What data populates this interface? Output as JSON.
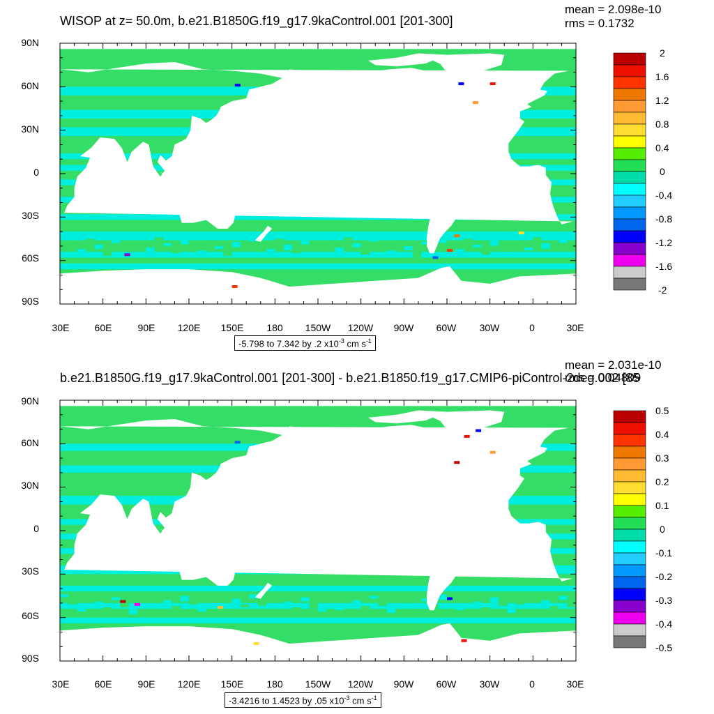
{
  "panels": [
    {
      "title": "WISOP at z=  50.0m, b.e21.B1850G.f19_g17.9kaControl.001 [201-300]",
      "mean_text": "mean = 2.098e-10",
      "rms_text": "rms = 0.1732",
      "range_main": "-5.798 to 7.342 by .2 x10",
      "range_exp": "-3",
      "range_units": " cm s",
      "range_units_exp": "-1",
      "colorbar_labels": [
        "2",
        "1.6",
        "1.2",
        "0.8",
        "0.4",
        "0",
        "-0.4",
        "-0.8",
        "-1.2",
        "-1.6",
        "-2"
      ]
    },
    {
      "title": "b.e21.B1850G.f19_g17.9kaControl.001 [201-300] - b.e21.B1850.f19_g17.CMIP6-piControl-2deg.002 [85",
      "mean_text": "mean = 2.031e-10",
      "rms_text": "rms = 0.04809",
      "range_main": "-3.4216 to 1.4523 by .05 x10",
      "range_exp": "-3",
      "range_units": " cm s",
      "range_units_exp": "-1",
      "colorbar_labels": [
        "0.5",
        "0.4",
        "0.3",
        "0.2",
        "0.1",
        "0",
        "-0.1",
        "-0.2",
        "-0.3",
        "-0.4",
        "-0.5"
      ]
    }
  ],
  "lat_labels": [
    "90N",
    "60N",
    "30N",
    "0",
    "30S",
    "60S",
    "90S"
  ],
  "lon_labels": [
    "30E",
    "60E",
    "90E",
    "120E",
    "150E",
    "180",
    "150W",
    "120W",
    "90W",
    "60W",
    "30W",
    "0",
    "30E"
  ],
  "colors": {
    "ocean_base": "#33dd66",
    "ocean_cyan": "#00eedd",
    "land": "#ffffff",
    "colorbar": [
      "#bb0000",
      "#ee1100",
      "#ff3300",
      "#ee7700",
      "#ff9933",
      "#ffbb33",
      "#ffdd33",
      "#ffff00",
      "#55ee00",
      "#22dd55",
      "#00ddaa",
      "#00ffff",
      "#22ccff",
      "#0099ff",
      "#0066ee",
      "#0000ff",
      "#8800cc",
      "#ee00ee",
      "#cccccc",
      "#777777"
    ]
  }
}
